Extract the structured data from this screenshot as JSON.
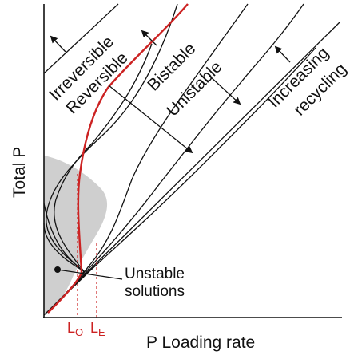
{
  "axes": {
    "x_label": "P Loading rate",
    "y_label": "Total P"
  },
  "regions": {
    "irreversible": "Irreversible",
    "reversible": "Reversible",
    "bistable": "Bistable",
    "unistable": "Unistable",
    "increasing_recycling_line1": "Increasing",
    "increasing_recycling_line2": "recycling"
  },
  "annotation": {
    "unstable_line1": "Unstable",
    "unstable_line2": "solutions"
  },
  "markers": {
    "lo_main": "L",
    "lo_sub": "O",
    "le_main": "L",
    "le_sub": "E"
  },
  "colors": {
    "highlight": "#cc2222",
    "shade": "#cfcfcf",
    "ink": "#111111"
  }
}
